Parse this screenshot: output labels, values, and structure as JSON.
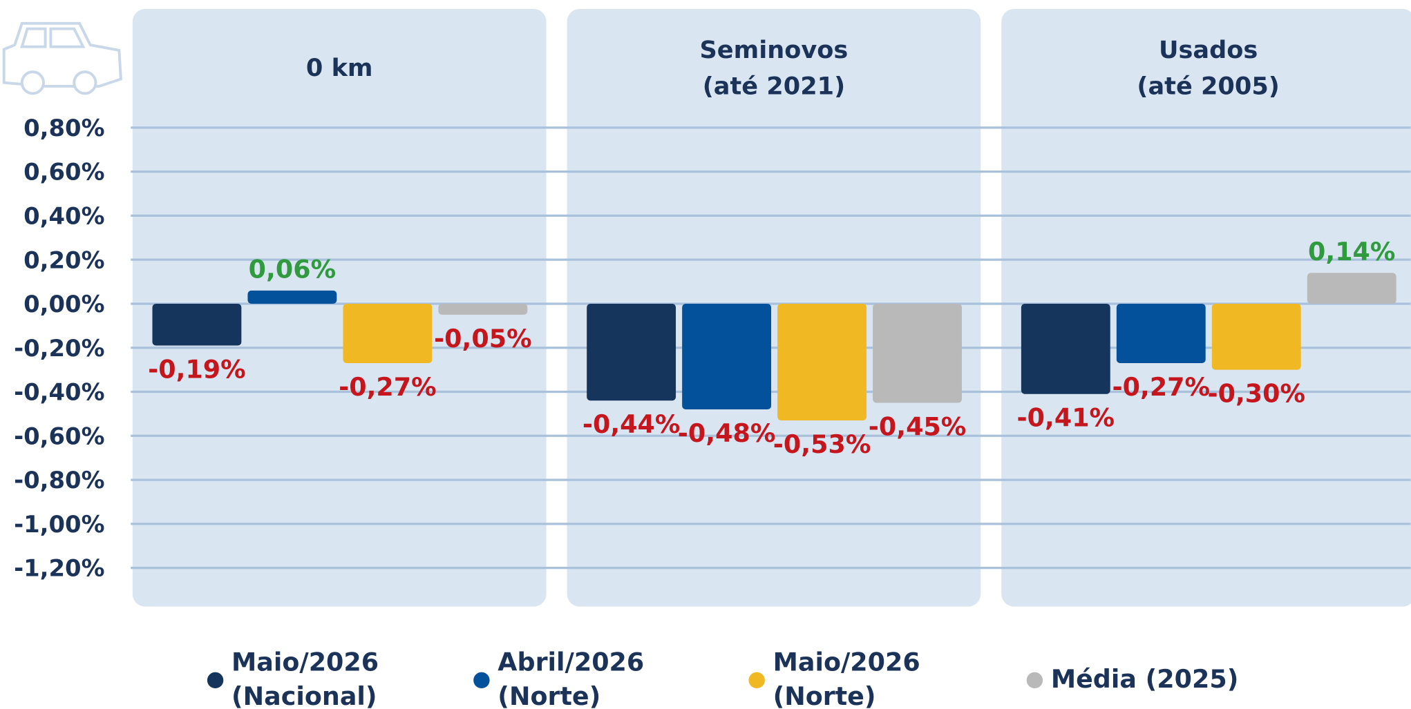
{
  "chart_data": {
    "type": "bar",
    "categories": [
      "0 km",
      "Seminovos\n(até 2021)",
      "Usados\n(até 2005)"
    ],
    "series": [
      {
        "name": "Maio/2026\n(Nacional)",
        "color": "#16355c",
        "values": [
          -0.19,
          -0.44,
          -0.41
        ],
        "value_labels": [
          "-0,19%",
          "-0,44%",
          "-0,41%"
        ]
      },
      {
        "name": "Abril/2026\n(Norte)",
        "color": "#03519a",
        "values": [
          0.06,
          -0.48,
          -0.27
        ],
        "value_labels": [
          "0,06%",
          "-0,48%",
          "-0,27%"
        ]
      },
      {
        "name": "Maio/2026\n(Norte)",
        "color": "#f0b823",
        "values": [
          -0.27,
          -0.53,
          -0.3
        ],
        "value_labels": [
          "-0,27%",
          "-0,53%",
          "-0,30%"
        ]
      },
      {
        "name": "Média (2025)",
        "color": "#b9b9b9",
        "values": [
          -0.05,
          -0.45,
          0.14
        ],
        "value_labels": [
          "-0,05%",
          "-0,45%",
          "0,14%"
        ]
      }
    ],
    "ylim": [
      -1.2,
      0.8
    ],
    "yticks": [
      {
        "value": 0.8,
        "label": "0,80%"
      },
      {
        "value": 0.6,
        "label": "0,60%"
      },
      {
        "value": 0.4,
        "label": "0,40%"
      },
      {
        "value": 0.2,
        "label": "0,20%"
      },
      {
        "value": 0,
        "label": "0,00%"
      },
      {
        "value": -0.2,
        "label": "-0,20%"
      },
      {
        "value": -0.4,
        "label": "-0,40%"
      },
      {
        "value": -0.6,
        "label": "-0,60%"
      },
      {
        "value": -0.8,
        "label": "-0,80%"
      },
      {
        "value": -1.0,
        "label": "-1,00%"
      },
      {
        "value": -1.2,
        "label": "-1,20%"
      }
    ],
    "grid": true,
    "legend": "bottom"
  }
}
